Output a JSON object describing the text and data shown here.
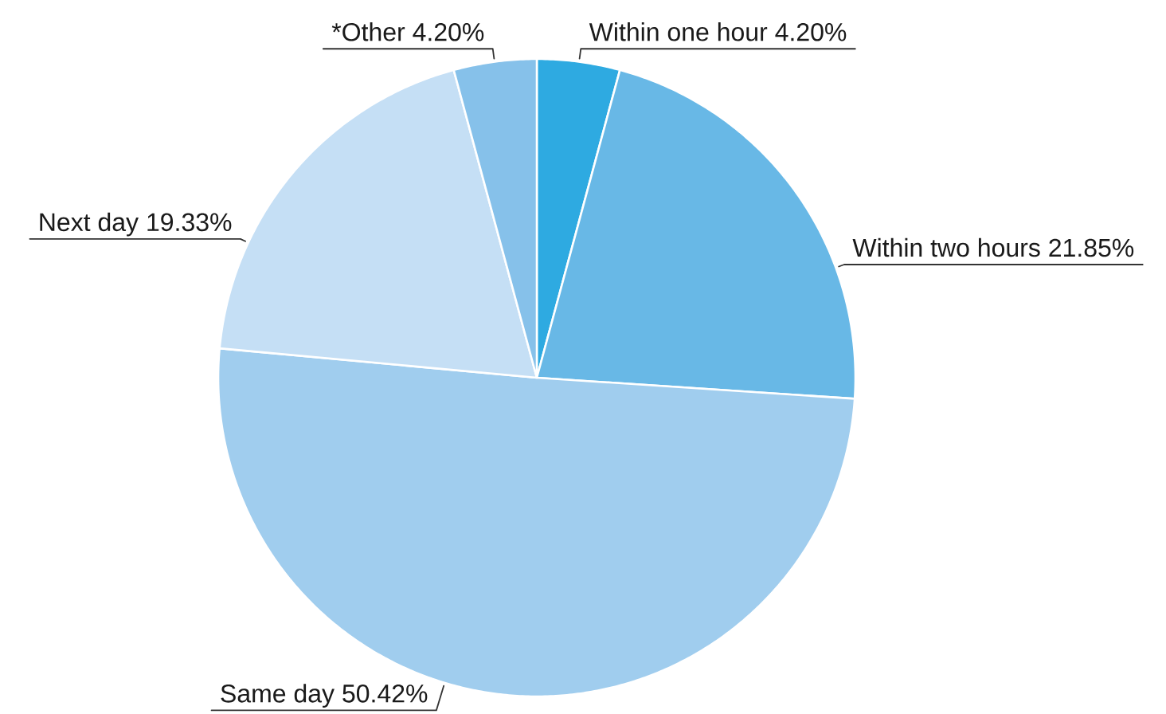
{
  "chart_data": {
    "type": "pie",
    "categories": [
      "Within one hour",
      "Within two hours",
      "Same day",
      "Next day",
      "*Other"
    ],
    "values": [
      4.2,
      21.85,
      50.42,
      19.33,
      4.2
    ],
    "value_labels": [
      "4.20%",
      "21.85%",
      "50.42%",
      "19.33%",
      "4.20%"
    ],
    "colors": [
      "#2eaae1",
      "#68b8e6",
      "#a0cdee",
      "#c5dff5",
      "#86c1ea"
    ]
  }
}
